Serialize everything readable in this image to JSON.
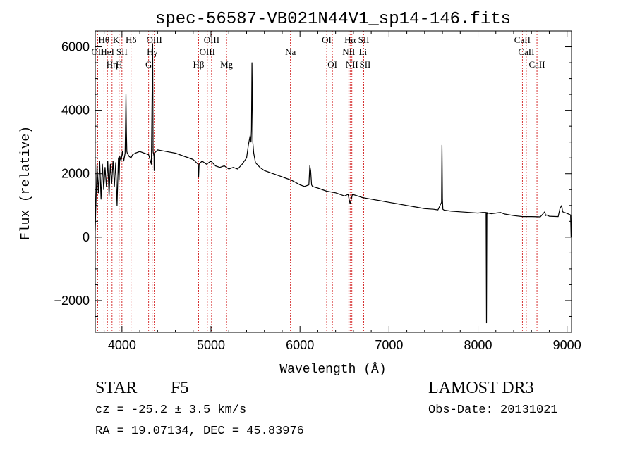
{
  "chart_data": {
    "type": "line",
    "title": "spec-56587-VB021N44V1_sp14-146.fits",
    "xlabel": "Wavelength (Å)",
    "ylabel": "Flux (relative)",
    "xlim": [
      3700,
      9050
    ],
    "ylim": [
      -3000,
      6500
    ],
    "xticks": [
      4000,
      5000,
      6000,
      7000,
      8000,
      9000
    ],
    "yticks": [
      -2000,
      0,
      2000,
      4000,
      6000
    ],
    "grid": false,
    "series": [
      {
        "x": [
          3700,
          3705,
          3720,
          3735,
          3750,
          3765,
          3780,
          3795,
          3810,
          3825,
          3840,
          3855,
          3870,
          3885,
          3900,
          3915,
          3930,
          3945,
          3960,
          3968,
          3975,
          3990,
          4005,
          4020,
          4035,
          4040,
          4045,
          4050,
          4055,
          4060,
          4080,
          4101,
          4120,
          4150,
          4200,
          4250,
          4300,
          4330,
          4340,
          4345,
          4350,
          4360,
          4362,
          4365,
          4400,
          4500,
          4600,
          4700,
          4800,
          4855,
          4861,
          4867,
          4900,
          4950,
          5000,
          5050,
          5100,
          5150,
          5200,
          5250,
          5300,
          5350,
          5400,
          5420,
          5440,
          5450,
          5455,
          5460,
          5470,
          5480,
          5500,
          5550,
          5600,
          5700,
          5800,
          5850,
          5900,
          6000,
          6050,
          6100,
          6110,
          6120,
          6130,
          6140,
          6200,
          6300,
          6400,
          6500,
          6540,
          6563,
          6590,
          6650,
          6700,
          6800,
          6900,
          7000,
          7100,
          7200,
          7300,
          7400,
          7500,
          7550,
          7590,
          7595,
          7600,
          7605,
          7610,
          7620,
          7700,
          7800,
          7900,
          8000,
          8050,
          8090,
          8095,
          8100,
          8105,
          8110,
          8150,
          8200,
          8250,
          8300,
          8400,
          8500,
          8600,
          8700,
          8750,
          8760,
          8770,
          8800,
          8900,
          8920,
          8940,
          8950,
          9000,
          9040,
          9045
        ],
        "values": [
          200,
          800,
          2300,
          1400,
          2400,
          1200,
          2300,
          1500,
          2200,
          1600,
          2400,
          1300,
          2300,
          1700,
          2400,
          1600,
          2350,
          1000,
          2500,
          1800,
          2550,
          2400,
          2700,
          2400,
          2650,
          3500,
          4500,
          3300,
          2700,
          2650,
          2550,
          2500,
          2600,
          2650,
          2700,
          2650,
          2600,
          2300,
          4800,
          6100,
          2700,
          2550,
          2100,
          2650,
          2750,
          2700,
          2650,
          2550,
          2450,
          2300,
          1900,
          2300,
          2400,
          2300,
          2400,
          2250,
          2200,
          2250,
          2150,
          2200,
          2150,
          2300,
          2500,
          2900,
          3200,
          3000,
          3400,
          5500,
          3000,
          2650,
          2350,
          2200,
          2100,
          2000,
          1900,
          1850,
          1800,
          1650,
          1600,
          1650,
          2250,
          2100,
          1650,
          1600,
          1550,
          1450,
          1400,
          1300,
          1350,
          1050,
          1350,
          1300,
          1250,
          1200,
          1150,
          1100,
          1050,
          1000,
          950,
          900,
          880,
          860,
          1100,
          2900,
          1200,
          880,
          870,
          850,
          820,
          800,
          780,
          760,
          780,
          780,
          -2700,
          780,
          740,
          760,
          740,
          760,
          780,
          730,
          680,
          650,
          650,
          640,
          800,
          680,
          700,
          660,
          650,
          900,
          1000,
          800,
          750,
          700,
          0
        ]
      }
    ],
    "spectral_lines": [
      {
        "wavelength": 3727,
        "label": "OII",
        "row": 1
      },
      {
        "wavelength": 3798,
        "label": "Hθ",
        "row": 0
      },
      {
        "wavelength": 3836,
        "label": "HeI",
        "row": 1
      },
      {
        "wavelength": 3889,
        "label": "Hη",
        "row": 2
      },
      {
        "wavelength": 3934,
        "label": "K",
        "row": 0
      },
      {
        "wavelength": 3968,
        "label": "H",
        "row": 2
      },
      {
        "wavelength": 4000,
        "label": "SII",
        "row": 1
      },
      {
        "wavelength": 4102,
        "label": "Hδ",
        "row": 0
      },
      {
        "wavelength": 4300,
        "label": "G",
        "row": 2
      },
      {
        "wavelength": 4340,
        "label": "Hγ",
        "row": 1
      },
      {
        "wavelength": 4363,
        "label": "OIII",
        "row": 0
      },
      {
        "wavelength": 4861,
        "label": "Hβ",
        "row": 2
      },
      {
        "wavelength": 4959,
        "label": "OIII",
        "row": 1
      },
      {
        "wavelength": 5007,
        "label": "OIII",
        "row": 0
      },
      {
        "wavelength": 5175,
        "label": "Mg",
        "row": 2
      },
      {
        "wavelength": 5893,
        "label": "Na",
        "row": 1
      },
      {
        "wavelength": 6300,
        "label": "OI",
        "row": 0
      },
      {
        "wavelength": 6364,
        "label": "OI",
        "row": 2
      },
      {
        "wavelength": 6548,
        "label": "NII",
        "row": 1
      },
      {
        "wavelength": 6563,
        "label": "Hα",
        "row": 0
      },
      {
        "wavelength": 6583,
        "label": "NII",
        "row": 2
      },
      {
        "wavelength": 6707,
        "label": "Li",
        "row": 1
      },
      {
        "wavelength": 6716,
        "label": "SII",
        "row": 0
      },
      {
        "wavelength": 6731,
        "label": "SII",
        "row": 2
      },
      {
        "wavelength": 8498,
        "label": "CaII",
        "row": 0
      },
      {
        "wavelength": 8542,
        "label": "CaII",
        "row": 1
      },
      {
        "wavelength": 8662,
        "label": "CaII",
        "row": 2
      }
    ],
    "line_color": "#000000",
    "marker_color": "#cc0000"
  },
  "info": {
    "object_class": "STAR",
    "subclass": "F5",
    "survey": "LAMOST DR3",
    "redshift": "cz = -25.2 ± 3.5 km/s",
    "obs_date": "Obs-Date: 20131021",
    "coords": "RA =  19.07134, DEC =  45.83976"
  }
}
